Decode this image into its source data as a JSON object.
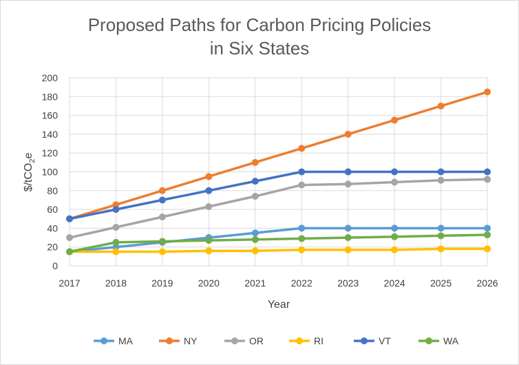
{
  "chart_data": {
    "type": "line",
    "title_line1": "Proposed Paths for Carbon Pricing Policies",
    "title_line2": "in Six States",
    "xlabel": "Year",
    "ylabel": "$/tCO2e",
    "x": [
      "2017",
      "2018",
      "2019",
      "2020",
      "2021",
      "2022",
      "2023",
      "2024",
      "2025",
      "2026"
    ],
    "yticks": [
      "0",
      "20",
      "40",
      "60",
      "80",
      "100",
      "120",
      "140",
      "160",
      "180",
      "200"
    ],
    "ylim": [
      0,
      200
    ],
    "grid": true,
    "legend_position": "bottom",
    "series": [
      {
        "name": "MA",
        "color": "#5B9BD5",
        "values": [
          15,
          20,
          25,
          30,
          35,
          40,
          40,
          40,
          40,
          40
        ]
      },
      {
        "name": "NY",
        "color": "#ED7D31",
        "values": [
          50,
          65,
          80,
          95,
          110,
          125,
          140,
          155,
          170,
          185
        ]
      },
      {
        "name": "OR",
        "color": "#A5A5A5",
        "values": [
          30,
          41,
          52,
          63,
          74,
          86,
          87,
          89,
          91,
          92
        ]
      },
      {
        "name": "RI",
        "color": "#FFC000",
        "values": [
          15,
          15,
          15,
          16,
          16,
          17,
          17,
          17,
          18,
          18
        ]
      },
      {
        "name": "VT",
        "color": "#4472C4",
        "values": [
          50,
          60,
          70,
          80,
          90,
          100,
          100,
          100,
          100,
          100
        ]
      },
      {
        "name": "WA",
        "color": "#70AD47",
        "values": [
          15,
          25,
          26,
          27,
          28,
          29,
          30,
          31,
          32,
          33
        ]
      }
    ]
  }
}
